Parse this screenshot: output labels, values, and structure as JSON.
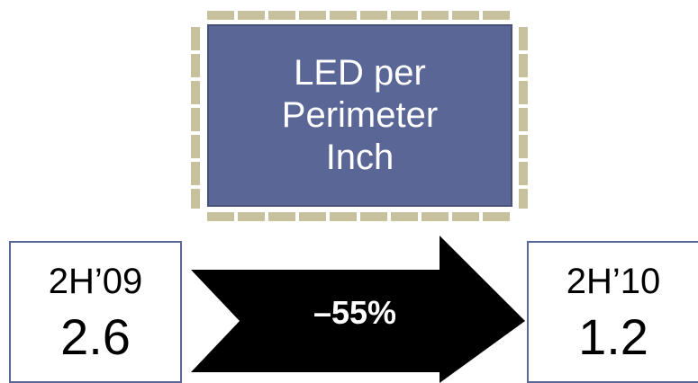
{
  "title_box": {
    "lines": [
      "LED per",
      "Perimeter",
      "Inch"
    ]
  },
  "before": {
    "period": "2H’09",
    "value": "2.6"
  },
  "after": {
    "period": "2H’10",
    "value": "1.2"
  },
  "change": {
    "label": "–55%"
  },
  "colors": {
    "title_fill": "#5a6796",
    "led_segment": "#c8c19e",
    "arrow": "#000000",
    "box_border": "#5a6796"
  }
}
